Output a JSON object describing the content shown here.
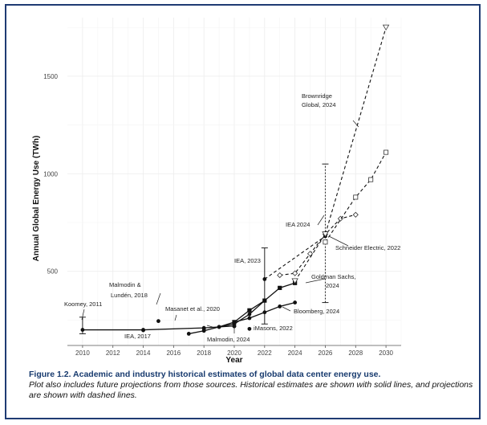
{
  "chart_data": {
    "type": "line",
    "xlabel": "Year",
    "ylabel": "Annual Global Energy Use (TWh)",
    "xlim": [
      2009,
      2031
    ],
    "ylim": [
      120,
      1800
    ],
    "xticks": [
      2010,
      2012,
      2014,
      2016,
      2018,
      2020,
      2022,
      2024,
      2026,
      2028,
      2030
    ],
    "yticks": [
      500,
      1000,
      1500
    ],
    "grid": true,
    "series": [
      {
        "name": "Koomey, 2011",
        "x": [
          2010,
          2014,
          2018,
          2020
        ],
        "y": [
          200,
          200,
          210,
          220
        ],
        "style": "solid",
        "marker": "dot"
      },
      {
        "name": "Malmodin & Lundén, 2018",
        "x": [
          2015
        ],
        "y": [
          245
        ],
        "style": "solid",
        "marker": "dot"
      },
      {
        "name": "Masanet et al., 2020",
        "x": [
          2018
        ],
        "y": [
          205
        ],
        "style": "solid",
        "marker": "dot"
      },
      {
        "name": "IEA, 2017",
        "x": [
          2014
        ],
        "y": [
          198
        ],
        "style": "solid",
        "marker": "dot"
      },
      {
        "name": "IEA, 2023",
        "x": [
          2019,
          2020,
          2021,
          2022
        ],
        "y": [
          215,
          230,
          280,
          350
        ],
        "style": "solid",
        "marker": "dot"
      },
      {
        "name": "Malmodin, 2024",
        "x": [
          2020
        ],
        "y": [
          218
        ],
        "style": "solid",
        "marker": "dot"
      },
      {
        "name": "iMasons, 2022",
        "x": [
          2021
        ],
        "y": [
          205
        ],
        "style": "solid",
        "marker": "dot"
      },
      {
        "name": "Bloomberg, 2024",
        "x": [
          2017,
          2018,
          2019,
          2020,
          2021,
          2022,
          2023,
          2024
        ],
        "y": [
          180,
          195,
          215,
          240,
          260,
          290,
          320,
          340
        ],
        "style": "solid",
        "marker": "dot"
      },
      {
        "name": "Goldman Sachs, 2024",
        "x": [
          2020,
          2021,
          2022,
          2023,
          2024
        ],
        "y": [
          240,
          300,
          350,
          415,
          440
        ],
        "style": "solid",
        "marker": "square"
      },
      {
        "name": "Schneider Electric, 2022",
        "x": [
          2023,
          2024,
          2025,
          2026,
          2027,
          2028
        ],
        "y": [
          480,
          490,
          590,
          690,
          770,
          790
        ],
        "style": "dashed",
        "marker": "diamond"
      },
      {
        "name": "IEA 2024",
        "x": [
          2022,
          2026
        ],
        "y": [
          460,
          680
        ],
        "style": "dashed",
        "marker": "dot"
      },
      {
        "name": "Brownridge Global, 2024",
        "x": [
          2024,
          2026,
          2030
        ],
        "y": [
          450,
          690,
          1750
        ],
        "style": "dashed",
        "marker": "triangle"
      },
      {
        "name": "Schneider Electric, 2022 (projection)",
        "x": [
          2026,
          2028,
          2029,
          2030
        ],
        "y": [
          650,
          880,
          970,
          1110
        ],
        "style": "dashed",
        "marker": "square-open"
      }
    ],
    "error_bars": [
      {
        "x": 2010,
        "low": 180,
        "high": 265
      },
      {
        "x": 2022,
        "low": 230,
        "high": 620
      },
      {
        "x": 2026,
        "low": 340,
        "high": 1050
      }
    ],
    "annotations": [
      {
        "text": "Koomey, 2011"
      },
      {
        "text": "Malmodin &"
      },
      {
        "text": "Lundén, 2018"
      },
      {
        "text": "Masanet et al., 2020"
      },
      {
        "text": "IEA, 2017"
      },
      {
        "text": "Malmodin, 2024"
      },
      {
        "text": "IEA, 2023"
      },
      {
        "text": "iMasons, 2022"
      },
      {
        "text": "Bloomberg, 2024"
      },
      {
        "text": "Goldman Sachs,"
      },
      {
        "text": "2024"
      },
      {
        "text": "Schneider Electric, 2022"
      },
      {
        "text": "IEA 2024"
      },
      {
        "text": "Brownridge"
      },
      {
        "text": "Global, 2024"
      }
    ]
  },
  "caption": {
    "figure": "Figure 1.2.  Academic and industry historical estimates of global data center energy use.",
    "description": "Plot also includes future projections from those sources. Historical estimates are shown with solid lines, and projections are shown with dashed lines."
  }
}
